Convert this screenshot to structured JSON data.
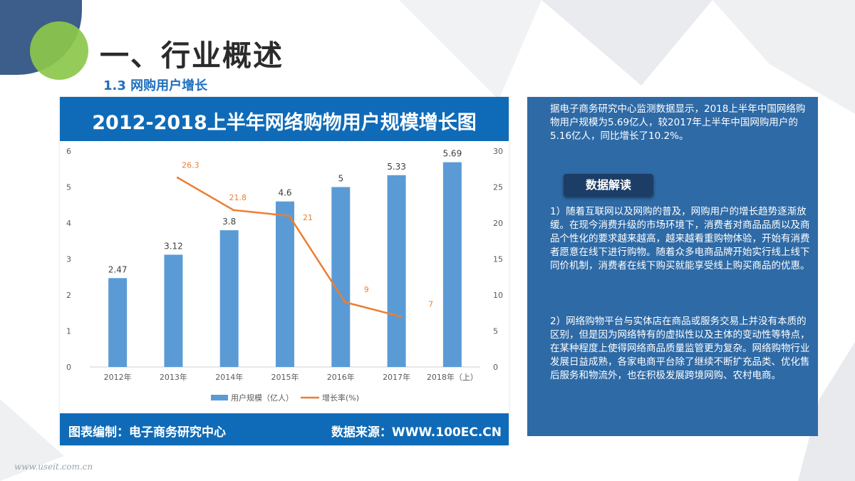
{
  "slide": {
    "title": "一、行业概述",
    "subtitle": "1.3 网购用户增长"
  },
  "chart_header": {
    "title": "2012-2018上半年网络购物用户规模增长图"
  },
  "chart_footer": {
    "left": "图表编制：电子商务研究中心",
    "right": "数据来源：WWW.100EC.CN"
  },
  "chart_data": {
    "type": "bar",
    "categories": [
      "2012年",
      "2013年",
      "2014年",
      "2015年",
      "2016年",
      "2017年",
      "2018年（上）"
    ],
    "series": [
      {
        "name": "用户规模（亿人）",
        "type": "bar",
        "axis": "left",
        "color": "#5b9bd5",
        "values": [
          2.47,
          3.12,
          3.8,
          4.6,
          5,
          5.33,
          5.69
        ],
        "labels": [
          "2.47",
          "3.12",
          "3.8",
          "4.6",
          "5",
          "5.33",
          "5.69"
        ]
      },
      {
        "name": "增长率(%)",
        "type": "line",
        "axis": "right",
        "color": "#ed7d31",
        "values": [
          null,
          26.3,
          21.8,
          21,
          9,
          7,
          null
        ],
        "labels": [
          "",
          "26.3",
          "21.8",
          "21",
          "9",
          "7",
          ""
        ]
      }
    ],
    "y_left": {
      "range": [
        0,
        6
      ],
      "ticks": [
        "0",
        "1",
        "2",
        "3",
        "4",
        "5",
        "6"
      ]
    },
    "y_right": {
      "range": [
        0,
        30
      ],
      "ticks": [
        "0",
        "5",
        "10",
        "15",
        "20",
        "25",
        "30"
      ]
    },
    "legend": "bottom",
    "grid": false
  },
  "side": {
    "intro": "据电子商务研究中心监测数据显示，2018上半年中国网络购物用户规模为5.69亿人，较2017年上半年中国网购用户的5.16亿人，同比增长了10.2%。",
    "badge": "数据解读",
    "p1": "1）随着互联网以及网购的普及，网购用户的增长趋势逐渐放缓。在现今消费升级的市场环境下，消费者对商品品质以及商品个性化的要求越来越高，越来越看重购物体验，开始有消费者愿意在线下进行购物。随着众多电商品牌开始实行线上线下同价机制，消费者在线下购买就能享受线上购买商品的优惠。",
    "p2": "2）网络购物平台与实体店在商品或服务交易上并没有本质的区别，但是因为网络特有的虚拟性以及主体的变动性等特点，在某种程度上使得网络商品质量监管更为复杂。网络购物行业发展日益成熟，各家电商平台除了继续不断扩充品类、优化售后服务和物流外，也在积极发展跨境网购、农村电商。"
  },
  "watermark": "www.useit.com.cn"
}
